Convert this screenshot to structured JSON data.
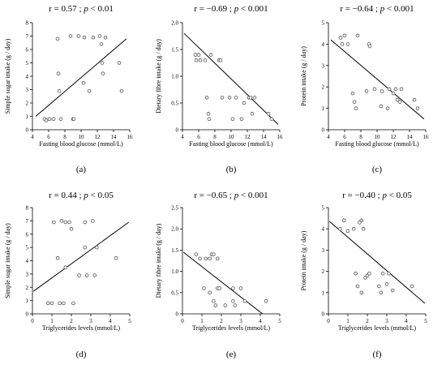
{
  "chart_data": [
    {
      "type": "scatter",
      "panel": "(a)",
      "title_pre": "r = 0.57 ; ",
      "title_p": "p",
      "title_post": " < 0.01",
      "xlabel": "Fasting blood glucose (mmol/L)",
      "ylabel": "Simple sugar intake (g / day)",
      "xlim": [
        4,
        16
      ],
      "ylim": [
        0,
        8
      ],
      "xticks": [
        4,
        6,
        8,
        10,
        12,
        14,
        16
      ],
      "yticks": [
        0,
        1,
        2,
        3,
        4,
        5,
        6,
        7,
        8
      ],
      "points": [
        [
          5.5,
          0.8
        ],
        [
          5.7,
          0.7
        ],
        [
          6.1,
          0.8
        ],
        [
          6.6,
          0.8
        ],
        [
          7.1,
          6.8
        ],
        [
          7.2,
          4.2
        ],
        [
          7.3,
          2.9
        ],
        [
          7.5,
          0.8
        ],
        [
          8.7,
          7.0
        ],
        [
          9.0,
          0.8
        ],
        [
          9.1,
          0.8
        ],
        [
          9.7,
          7.0
        ],
        [
          10.3,
          3.5
        ],
        [
          10.4,
          6.9
        ],
        [
          11.0,
          2.9
        ],
        [
          11.5,
          6.9
        ],
        [
          12.3,
          7.0
        ],
        [
          12.5,
          6.4
        ],
        [
          12.6,
          5.0
        ],
        [
          12.7,
          4.2
        ],
        [
          13.0,
          6.9
        ],
        [
          14.7,
          5.0
        ],
        [
          15.0,
          2.9
        ]
      ],
      "trend": [
        [
          4.4,
          1.0
        ],
        [
          15.6,
          6.8
        ]
      ]
    },
    {
      "type": "scatter",
      "panel": "(b)",
      "title_pre": "r = −0.69 ; ",
      "title_p": "p",
      "title_post": " < 0.001",
      "xlabel": "Fasting blood glucose (mmol/L)",
      "ylabel": "Dietary fibre intake (g / day)",
      "xlim": [
        4,
        16
      ],
      "ylim": [
        0,
        2
      ],
      "xticks": [
        4,
        6,
        8,
        10,
        12,
        14,
        16
      ],
      "yticks": [
        0,
        0.5,
        1,
        1.5,
        2
      ],
      "ytick_labels": [
        "0",
        "0.5",
        "1.0",
        "1.5",
        "2.0"
      ],
      "points": [
        [
          5.6,
          1.4
        ],
        [
          5.7,
          1.3
        ],
        [
          6.0,
          1.4
        ],
        [
          6.2,
          1.3
        ],
        [
          6.8,
          1.3
        ],
        [
          7.0,
          0.6
        ],
        [
          7.2,
          0.3
        ],
        [
          7.3,
          0.2
        ],
        [
          7.5,
          1.4
        ],
        [
          8.5,
          1.3
        ],
        [
          8.7,
          1.3
        ],
        [
          8.9,
          0.6
        ],
        [
          9.8,
          0.6
        ],
        [
          10.2,
          0.2
        ],
        [
          10.6,
          0.6
        ],
        [
          11.3,
          0.2
        ],
        [
          11.6,
          0.5
        ],
        [
          12.2,
          0.6
        ],
        [
          12.4,
          0.6
        ],
        [
          12.6,
          0.3
        ],
        [
          12.9,
          0.6
        ],
        [
          14.6,
          0.3
        ],
        [
          15.0,
          0.2
        ]
      ],
      "trend": [
        [
          4.2,
          1.8
        ],
        [
          15.8,
          0.1
        ]
      ]
    },
    {
      "type": "scatter",
      "panel": "(c)",
      "title_pre": "r = −0.64 ; ",
      "title_p": "p",
      "title_post": " < 0.001",
      "xlabel": "Fasting blood glucose (mmol/L)",
      "ylabel": "Protein intake (g / day)",
      "xlim": [
        4,
        16
      ],
      "ylim": [
        0,
        5
      ],
      "xticks": [
        4,
        6,
        8,
        10,
        12,
        14,
        16
      ],
      "yticks": [
        0,
        1,
        2,
        3,
        4,
        5
      ],
      "points": [
        [
          5.5,
          4.3
        ],
        [
          5.7,
          4.0
        ],
        [
          6.0,
          4.4
        ],
        [
          6.4,
          4.0
        ],
        [
          7.0,
          1.7
        ],
        [
          7.2,
          1.3
        ],
        [
          7.4,
          1.0
        ],
        [
          7.6,
          4.4
        ],
        [
          8.7,
          1.8
        ],
        [
          9.0,
          4.0
        ],
        [
          9.1,
          3.9
        ],
        [
          9.7,
          1.9
        ],
        [
          10.5,
          1.1
        ],
        [
          10.6,
          1.8
        ],
        [
          11.3,
          1.0
        ],
        [
          11.5,
          1.9
        ],
        [
          12.0,
          1.7
        ],
        [
          12.3,
          1.9
        ],
        [
          12.5,
          1.4
        ],
        [
          12.8,
          1.3
        ],
        [
          13.0,
          1.9
        ],
        [
          14.6,
          1.4
        ],
        [
          15.0,
          1.0
        ]
      ],
      "trend": [
        [
          4.3,
          4.2
        ],
        [
          15.8,
          0.5
        ]
      ]
    },
    {
      "type": "scatter",
      "panel": "(d)",
      "title_pre": "r = 0.44 ; ",
      "title_p": "p",
      "title_post": " < 0.05",
      "xlabel": "Triglycerides levels (mmol/L)",
      "ylabel": "Simple sugar intake (g / day)",
      "xlim": [
        0,
        5
      ],
      "ylim": [
        0,
        8
      ],
      "xticks": [
        0,
        1,
        2,
        3,
        4,
        5
      ],
      "yticks": [
        0,
        1,
        2,
        3,
        4,
        5,
        6,
        7,
        8
      ],
      "points": [
        [
          0.8,
          0.8
        ],
        [
          1.0,
          0.8
        ],
        [
          1.1,
          6.9
        ],
        [
          1.3,
          4.2
        ],
        [
          1.4,
          0.8
        ],
        [
          1.5,
          7.0
        ],
        [
          1.6,
          0.8
        ],
        [
          1.7,
          6.9
        ],
        [
          1.7,
          3.5
        ],
        [
          1.9,
          6.9
        ],
        [
          2.0,
          6.4
        ],
        [
          2.1,
          0.8
        ],
        [
          2.4,
          2.9
        ],
        [
          2.7,
          5.0
        ],
        [
          2.7,
          6.9
        ],
        [
          2.8,
          2.9
        ],
        [
          3.1,
          7.0
        ],
        [
          3.2,
          2.9
        ],
        [
          3.3,
          5.0
        ],
        [
          4.3,
          4.2
        ]
      ],
      "trend": [
        [
          0.05,
          1.7
        ],
        [
          4.95,
          6.9
        ]
      ]
    },
    {
      "type": "scatter",
      "panel": "(e)",
      "title_pre": "r = −0.65 ; ",
      "title_p": "p",
      "title_post": " < 0.001",
      "xlabel": "Triglycerides levels (mmol/L)",
      "ylabel": "Dietary fibre intake (g / day)",
      "xlim": [
        0,
        5
      ],
      "ylim": [
        0,
        2.5
      ],
      "xticks": [
        0,
        1,
        2,
        3,
        4,
        5
      ],
      "yticks": [
        0,
        0.5,
        1,
        1.5,
        2,
        2.5
      ],
      "ytick_labels": [
        "0",
        "0.5",
        "1.0",
        "1.5",
        "2.0",
        "2.5"
      ],
      "points": [
        [
          0.7,
          1.4
        ],
        [
          0.9,
          1.3
        ],
        [
          1.1,
          0.6
        ],
        [
          1.2,
          1.3
        ],
        [
          1.4,
          0.5
        ],
        [
          1.4,
          1.3
        ],
        [
          1.5,
          1.4
        ],
        [
          1.6,
          0.3
        ],
        [
          1.6,
          1.4
        ],
        [
          1.7,
          0.2
        ],
        [
          1.8,
          0.6
        ],
        [
          1.8,
          1.3
        ],
        [
          1.9,
          0.6
        ],
        [
          2.2,
          0.2
        ],
        [
          2.6,
          0.6
        ],
        [
          2.6,
          0.3
        ],
        [
          2.7,
          0.2
        ],
        [
          3.0,
          0.6
        ],
        [
          3.2,
          0.3
        ],
        [
          4.3,
          0.3
        ]
      ],
      "trend": [
        [
          0.05,
          1.45
        ],
        [
          4.95,
          -0.3
        ]
      ]
    },
    {
      "type": "scatter",
      "panel": "(f)",
      "title_pre": "r = −0.40 ; ",
      "title_p": "p",
      "title_post": " < 0.05",
      "xlabel": "Triglycerides levels (mmol/L)",
      "ylabel": "Protein intake (g / day)",
      "xlim": [
        0,
        5
      ],
      "ylim": [
        0,
        5
      ],
      "xticks": [
        0,
        1,
        2,
        3,
        4,
        5
      ],
      "yticks": [
        0,
        1,
        2,
        3,
        4,
        5
      ],
      "points": [
        [
          0.6,
          4.0
        ],
        [
          0.8,
          4.4
        ],
        [
          1.0,
          3.9
        ],
        [
          1.3,
          4.0
        ],
        [
          1.4,
          1.9
        ],
        [
          1.5,
          1.3
        ],
        [
          1.6,
          4.3
        ],
        [
          1.7,
          1.0
        ],
        [
          1.7,
          4.4
        ],
        [
          1.8,
          4.0
        ],
        [
          1.9,
          1.7
        ],
        [
          2.0,
          1.8
        ],
        [
          2.1,
          1.9
        ],
        [
          2.6,
          1.3
        ],
        [
          2.7,
          1.0
        ],
        [
          2.8,
          1.9
        ],
        [
          3.0,
          1.4
        ],
        [
          3.1,
          1.9
        ],
        [
          3.3,
          1.1
        ],
        [
          4.3,
          1.3
        ]
      ],
      "trend": [
        [
          0.05,
          4.35
        ],
        [
          4.95,
          0.5
        ]
      ]
    }
  ]
}
